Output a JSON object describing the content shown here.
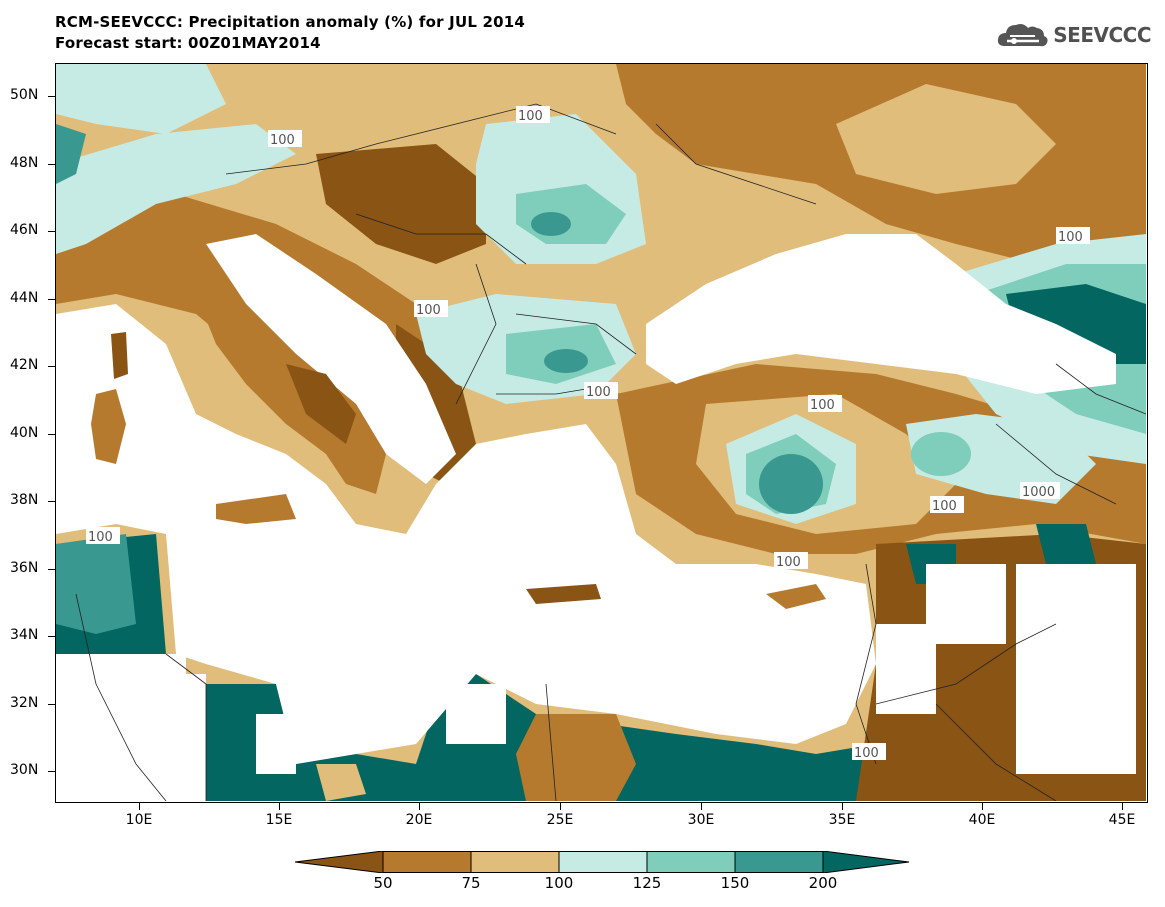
{
  "title": {
    "line1": "RCM-SEEVCCC: Precipitation anomaly (%) for JUL 2014",
    "line2": "Forecast start: 00Z01MAY2014"
  },
  "logo": {
    "text": "SEEVCCC",
    "icon": "cloud-icon"
  },
  "axes": {
    "lat_labels": [
      "50N",
      "48N",
      "46N",
      "44N",
      "42N",
      "40N",
      "38N",
      "36N",
      "34N",
      "32N",
      "30N"
    ],
    "lon_labels": [
      "10E",
      "15E",
      "20E",
      "25E",
      "30E",
      "35E",
      "40E",
      "45E"
    ]
  },
  "contour_labels": [
    "100",
    "100",
    "100",
    "100",
    "100",
    "100",
    "100",
    "100",
    "100",
    "1000",
    "100"
  ],
  "colorbar": {
    "ticks": [
      "50",
      "75",
      "100",
      "125",
      "150",
      "200"
    ],
    "colors": [
      "#8a5414",
      "#b57a2e",
      "#e0bd7a",
      "#c6ebe5",
      "#7fcdbb",
      "#39988f",
      "#036661"
    ]
  },
  "colors": {
    "brown_dark": "#8a5414",
    "brown_mid": "#b57a2e",
    "tan": "#e0bd7a",
    "aqua_light": "#c6ebe5",
    "aqua_mid": "#7fcdbb",
    "teal": "#39988f",
    "teal_dark": "#036661",
    "water": "#ffffff"
  }
}
